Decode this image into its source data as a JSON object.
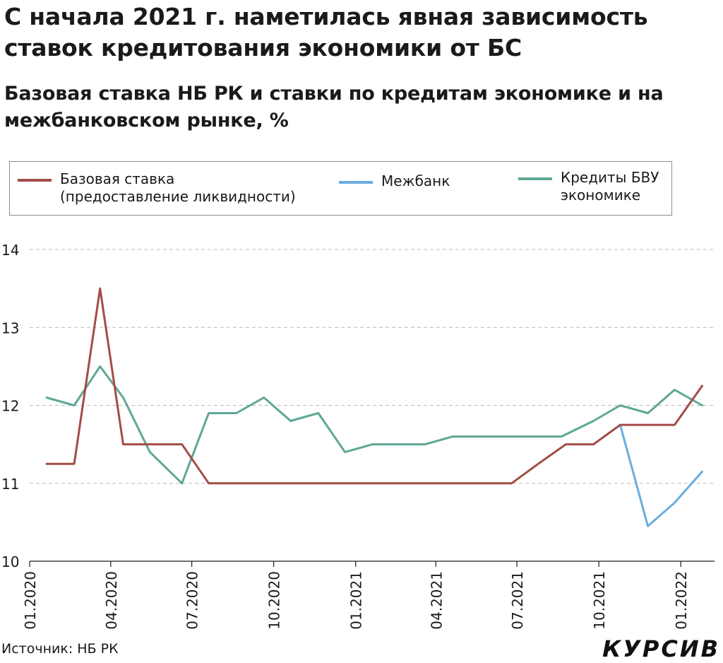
{
  "title": "С начала 2021 г. наметилась явная зависимость ставок кредитования экономики от БС",
  "subtitle": "Базовая ставка НБ РК и ставки по кредитам экономике и на межбанковском рынке, %",
  "legend": [
    {
      "label": "Базовая ставка\n(предоставление ликвидности)",
      "color": "#a24d47"
    },
    {
      "label": "Межбанк",
      "color": "#6aaedf"
    },
    {
      "label": "Кредиты БВУ\nэкономике",
      "color": "#5ea796"
    }
  ],
  "source": "Источник: НБ РК",
  "logo": "КУРСИВ",
  "chart_data": {
    "type": "line",
    "ylim": [
      10,
      14
    ],
    "yticks": [
      10,
      11,
      12,
      13,
      14
    ],
    "xlim": [
      "2020-01",
      "2022-04"
    ],
    "xticks": [
      "01.2020",
      "04.2020",
      "07.2020",
      "10.2020",
      "01.2021",
      "04.2021",
      "07.2021",
      "10.2021",
      "01.2022"
    ],
    "grid": "horizontal dashed",
    "series": [
      {
        "name": "Базовая ставка\n(предоставление ликвидности)",
        "color": "#a24d47",
        "points": [
          [
            "2020-01-20",
            11.25
          ],
          [
            "2020-02-20",
            11.25
          ],
          [
            "2020-03-20",
            13.5
          ],
          [
            "2020-04-15",
            11.5
          ],
          [
            "2020-05-15",
            11.5
          ],
          [
            "2020-06-20",
            11.5
          ],
          [
            "2020-07-20",
            11.0
          ],
          [
            "2020-08-20",
            11.0
          ],
          [
            "2020-10-20",
            11.0
          ],
          [
            "2021-01-20",
            11.0
          ],
          [
            "2021-04-20",
            11.0
          ],
          [
            "2021-06-25",
            11.0
          ],
          [
            "2021-07-25",
            11.25
          ],
          [
            "2021-08-25",
            11.5
          ],
          [
            "2021-09-25",
            11.5
          ],
          [
            "2021-10-25",
            11.75
          ],
          [
            "2021-11-25",
            11.75
          ],
          [
            "2021-12-25",
            11.75
          ],
          [
            "2022-01-25",
            12.25
          ]
        ]
      },
      {
        "name": "Межбанк",
        "color": "#6aaedf",
        "points": [
          [
            "2021-10-25",
            11.75
          ],
          [
            "2021-11-25",
            10.45
          ],
          [
            "2021-12-25",
            10.75
          ],
          [
            "2022-01-25",
            11.15
          ]
        ]
      },
      {
        "name": "Кредиты БВУ\nэкономике",
        "color": "#5ea796",
        "points": [
          [
            "2020-01-20",
            12.1
          ],
          [
            "2020-02-20",
            12.0
          ],
          [
            "2020-03-20",
            12.5
          ],
          [
            "2020-04-15",
            12.1
          ],
          [
            "2020-05-15",
            11.4
          ],
          [
            "2020-06-20",
            11.0
          ],
          [
            "2020-07-20",
            11.9
          ],
          [
            "2020-08-20",
            11.9
          ],
          [
            "2020-09-20",
            12.1
          ],
          [
            "2020-10-20",
            11.8
          ],
          [
            "2020-11-20",
            11.9
          ],
          [
            "2020-12-20",
            11.4
          ],
          [
            "2021-01-20",
            11.5
          ],
          [
            "2021-02-20",
            11.5
          ],
          [
            "2021-03-20",
            11.5
          ],
          [
            "2021-04-20",
            11.6
          ],
          [
            "2021-05-20",
            11.6
          ],
          [
            "2021-06-20",
            11.6
          ],
          [
            "2021-07-20",
            11.6
          ],
          [
            "2021-08-20",
            11.6
          ],
          [
            "2021-09-25",
            11.8
          ],
          [
            "2021-10-25",
            12.0
          ],
          [
            "2021-11-25",
            11.9
          ],
          [
            "2021-12-25",
            12.2
          ],
          [
            "2022-01-25",
            12.0
          ]
        ]
      }
    ]
  }
}
